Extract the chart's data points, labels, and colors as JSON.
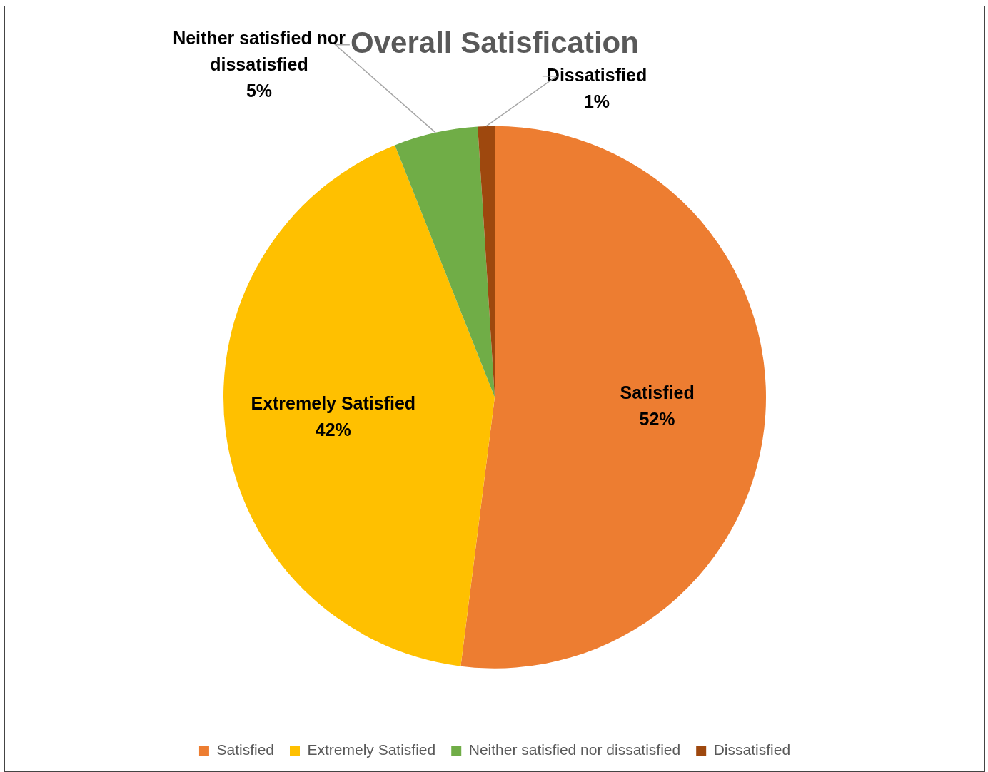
{
  "chart_data": {
    "type": "pie",
    "title": "Overall Satisfication",
    "categories": [
      "Satisfied",
      "Extremely Satisfied",
      "Neither satisfied nor dissatisfied",
      "Dissatisfied"
    ],
    "values": [
      52,
      42,
      5,
      1
    ],
    "colors": [
      "#ed7d31",
      "#ffc000",
      "#70ad47",
      "#9e480e"
    ],
    "value_labels": [
      "52%",
      "42%",
      "5%",
      "1%"
    ],
    "legend": "bottom"
  }
}
